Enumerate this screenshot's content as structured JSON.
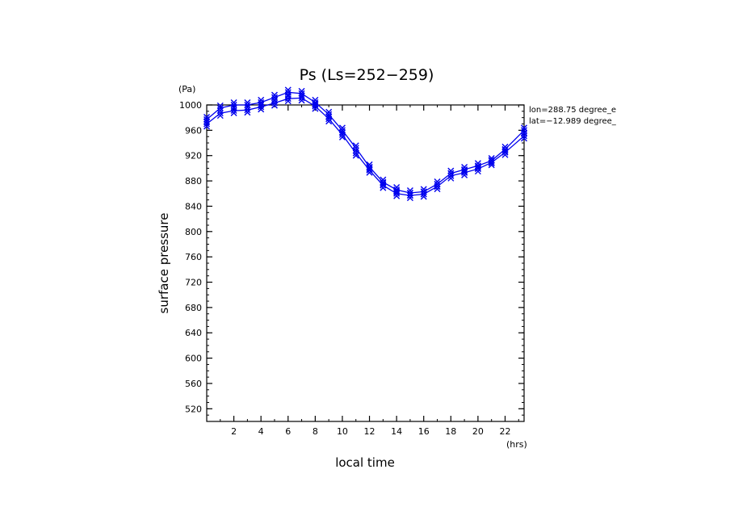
{
  "chart_data": {
    "type": "line",
    "title": "Ps (Ls=252−259)",
    "xlabel": "local time",
    "ylabel": "surface pressure",
    "x_unit": "(hrs)",
    "y_unit": "(Pa)",
    "annotations": [
      "lon=288.75 degree_e",
      "lat=−12.989 degree_"
    ],
    "xlim": [
      0,
      23.4
    ],
    "ylim": [
      500,
      1000
    ],
    "x_ticks": [
      2,
      4,
      6,
      8,
      10,
      12,
      14,
      16,
      18,
      20,
      22
    ],
    "y_ticks": [
      520,
      560,
      600,
      640,
      680,
      720,
      760,
      800,
      840,
      880,
      920,
      960,
      1000
    ],
    "grid": false,
    "marker": "x",
    "color": "#0000ee",
    "series": [
      {
        "x": [
          0,
          1,
          2,
          3,
          4,
          5,
          6,
          7,
          8,
          9,
          10,
          11,
          12,
          13,
          14,
          15,
          16,
          17,
          18,
          19,
          20,
          21,
          22,
          23.4
        ],
        "y": [
          977,
          995,
          1000,
          1000,
          1004,
          1012,
          1020,
          1018,
          1004,
          985,
          960,
          932,
          902,
          878,
          866,
          861,
          863,
          875,
          892,
          898,
          904,
          912,
          930,
          960
        ]
      },
      {
        "x": [
          0,
          1,
          2,
          3,
          4,
          5,
          6,
          7,
          8,
          9,
          10,
          11,
          12,
          13,
          14,
          15,
          16,
          17,
          18,
          19,
          20,
          21,
          22,
          23.4
        ],
        "y": [
          970,
          987,
          991,
          992,
          997,
          1003,
          1010,
          1011,
          998,
          978,
          953,
          924,
          897,
          873,
          860,
          857,
          859,
          871,
          888,
          893,
          899,
          909,
          925,
          951
        ]
      }
    ]
  }
}
